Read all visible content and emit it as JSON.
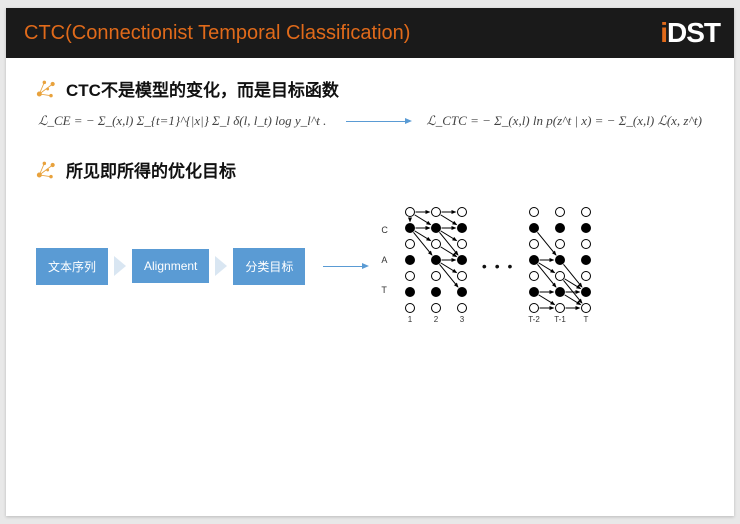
{
  "title": "CTC(Connectionist Temporal Classification)",
  "logo": {
    "part1": "i",
    "part2": "DST"
  },
  "bullet1": "CTC不是模型的变化，而是目标函数",
  "bullet2": "所见即所得的优化目标",
  "formula_ce": "ℒ_CE = − Σ_(x,l) Σ_{t=1}^{|x|} Σ_l δ(l, l_t) log y_l^t .",
  "formula_ctc": "ℒ_CTC = − Σ_(x,l) ln p(z^t | x) = − Σ_(x,l) ℒ(x, z^t)",
  "flow": {
    "box1": "文本序列",
    "box2": "Alignment",
    "box3": "分类目标"
  },
  "lattice": {
    "row_labels": [
      "",
      "C",
      "",
      "A",
      "",
      "T",
      ""
    ],
    "rows": 7,
    "left_cols": 3,
    "right_cols": 3,
    "col_labels_left": [
      "1",
      "2",
      "3"
    ],
    "col_labels_right": [
      "T-2",
      "T-1",
      "T"
    ],
    "node_open_color": "#ffffff",
    "node_stroke": "#000000",
    "node_fill_color": "#000000",
    "edge_color": "#000000",
    "col_spacing": 26,
    "row_spacing": 16,
    "radius": 4.5,
    "filled_rows": [
      1,
      3,
      5
    ],
    "left_edges": [
      [
        0,
        0,
        0,
        1
      ],
      [
        0,
        0,
        1,
        1
      ],
      [
        0,
        1,
        0,
        2
      ],
      [
        0,
        1,
        1,
        2
      ],
      [
        1,
        0,
        1,
        1
      ],
      [
        1,
        1,
        1,
        2
      ],
      [
        1,
        0,
        2,
        1
      ],
      [
        1,
        1,
        2,
        2
      ],
      [
        1,
        0,
        3,
        1
      ],
      [
        1,
        1,
        3,
        2
      ],
      [
        2,
        1,
        3,
        2
      ],
      [
        3,
        1,
        3,
        2
      ],
      [
        3,
        1,
        4,
        2
      ],
      [
        3,
        1,
        5,
        2
      ],
      [
        0,
        0,
        1,
        0
      ],
      [
        1,
        0,
        1,
        1
      ]
    ],
    "right_edges": [
      [
        3,
        0,
        4,
        1
      ],
      [
        3,
        0,
        5,
        1
      ],
      [
        4,
        1,
        5,
        2
      ],
      [
        4,
        1,
        6,
        2
      ],
      [
        5,
        0,
        5,
        1
      ],
      [
        5,
        1,
        5,
        2
      ],
      [
        5,
        0,
        6,
        1
      ],
      [
        5,
        1,
        6,
        2
      ],
      [
        6,
        0,
        6,
        1
      ],
      [
        6,
        1,
        6,
        2
      ],
      [
        1,
        0,
        3,
        1
      ],
      [
        3,
        0,
        3,
        1
      ],
      [
        3,
        1,
        5,
        2
      ]
    ],
    "label_fontsize": 8
  },
  "colors": {
    "title_bg": "#1a1a1a",
    "title_fg": "#e06a1a",
    "logo_accent": "#e06a1a",
    "logo_white": "#ffffff",
    "flow_box": "#5a9bd4",
    "flow_arrow": "#d9e6f2",
    "arrow_blue": "#5a9bd4",
    "bullet_icon": "#e8a23d"
  }
}
